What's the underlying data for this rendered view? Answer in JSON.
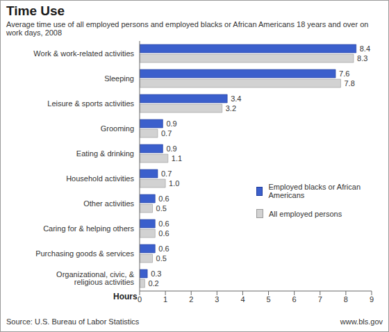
{
  "chart_data": {
    "type": "bar",
    "orientation": "horizontal",
    "title": "Time Use",
    "subtitle": "Average time use of all employed persons and employed blacks or African Americans 18 years and over on work days, 2008",
    "x_label": "Hours",
    "annotations": [
      "Source: U.S. Bureau of Labor Statistics",
      "www.bls.gov"
    ],
    "categories": [
      "Work & work-related activities",
      "Sleeping",
      "Leisure & sports activities",
      "Grooming",
      "Eating & drinking",
      "Household activities",
      "Other activities",
      "Caring for & helping others",
      "Purchasing goods & services",
      "Organizational, civic, & religious activities"
    ],
    "series": [
      {
        "name": "Employed blacks or African Americans",
        "color": "#3b5fcc",
        "values": [
          8.4,
          7.6,
          3.4,
          0.9,
          0.9,
          0.7,
          0.6,
          0.6,
          0.6,
          0.3
        ],
        "value_labels": [
          "8.4",
          "7.6",
          "3.4",
          "0.9",
          "0.9",
          "0.7",
          "0.6",
          "0.6",
          "0.6",
          "0.3"
        ]
      },
      {
        "name": "All employed persons",
        "color": "#d2d2d2",
        "values": [
          8.3,
          7.8,
          3.2,
          0.7,
          1.1,
          1.0,
          0.5,
          0.6,
          0.5,
          0.2
        ],
        "value_labels": [
          "8.3",
          "7.8",
          "3.2",
          "0.7",
          "1.1",
          "1.0",
          "0.5",
          "0.6",
          "0.5",
          "0.2"
        ]
      }
    ],
    "xlim": [
      0,
      9
    ],
    "xticks": [
      0,
      1,
      2,
      3,
      4,
      5,
      6,
      7,
      8,
      9
    ],
    "data_labels": true,
    "legend": "right"
  }
}
